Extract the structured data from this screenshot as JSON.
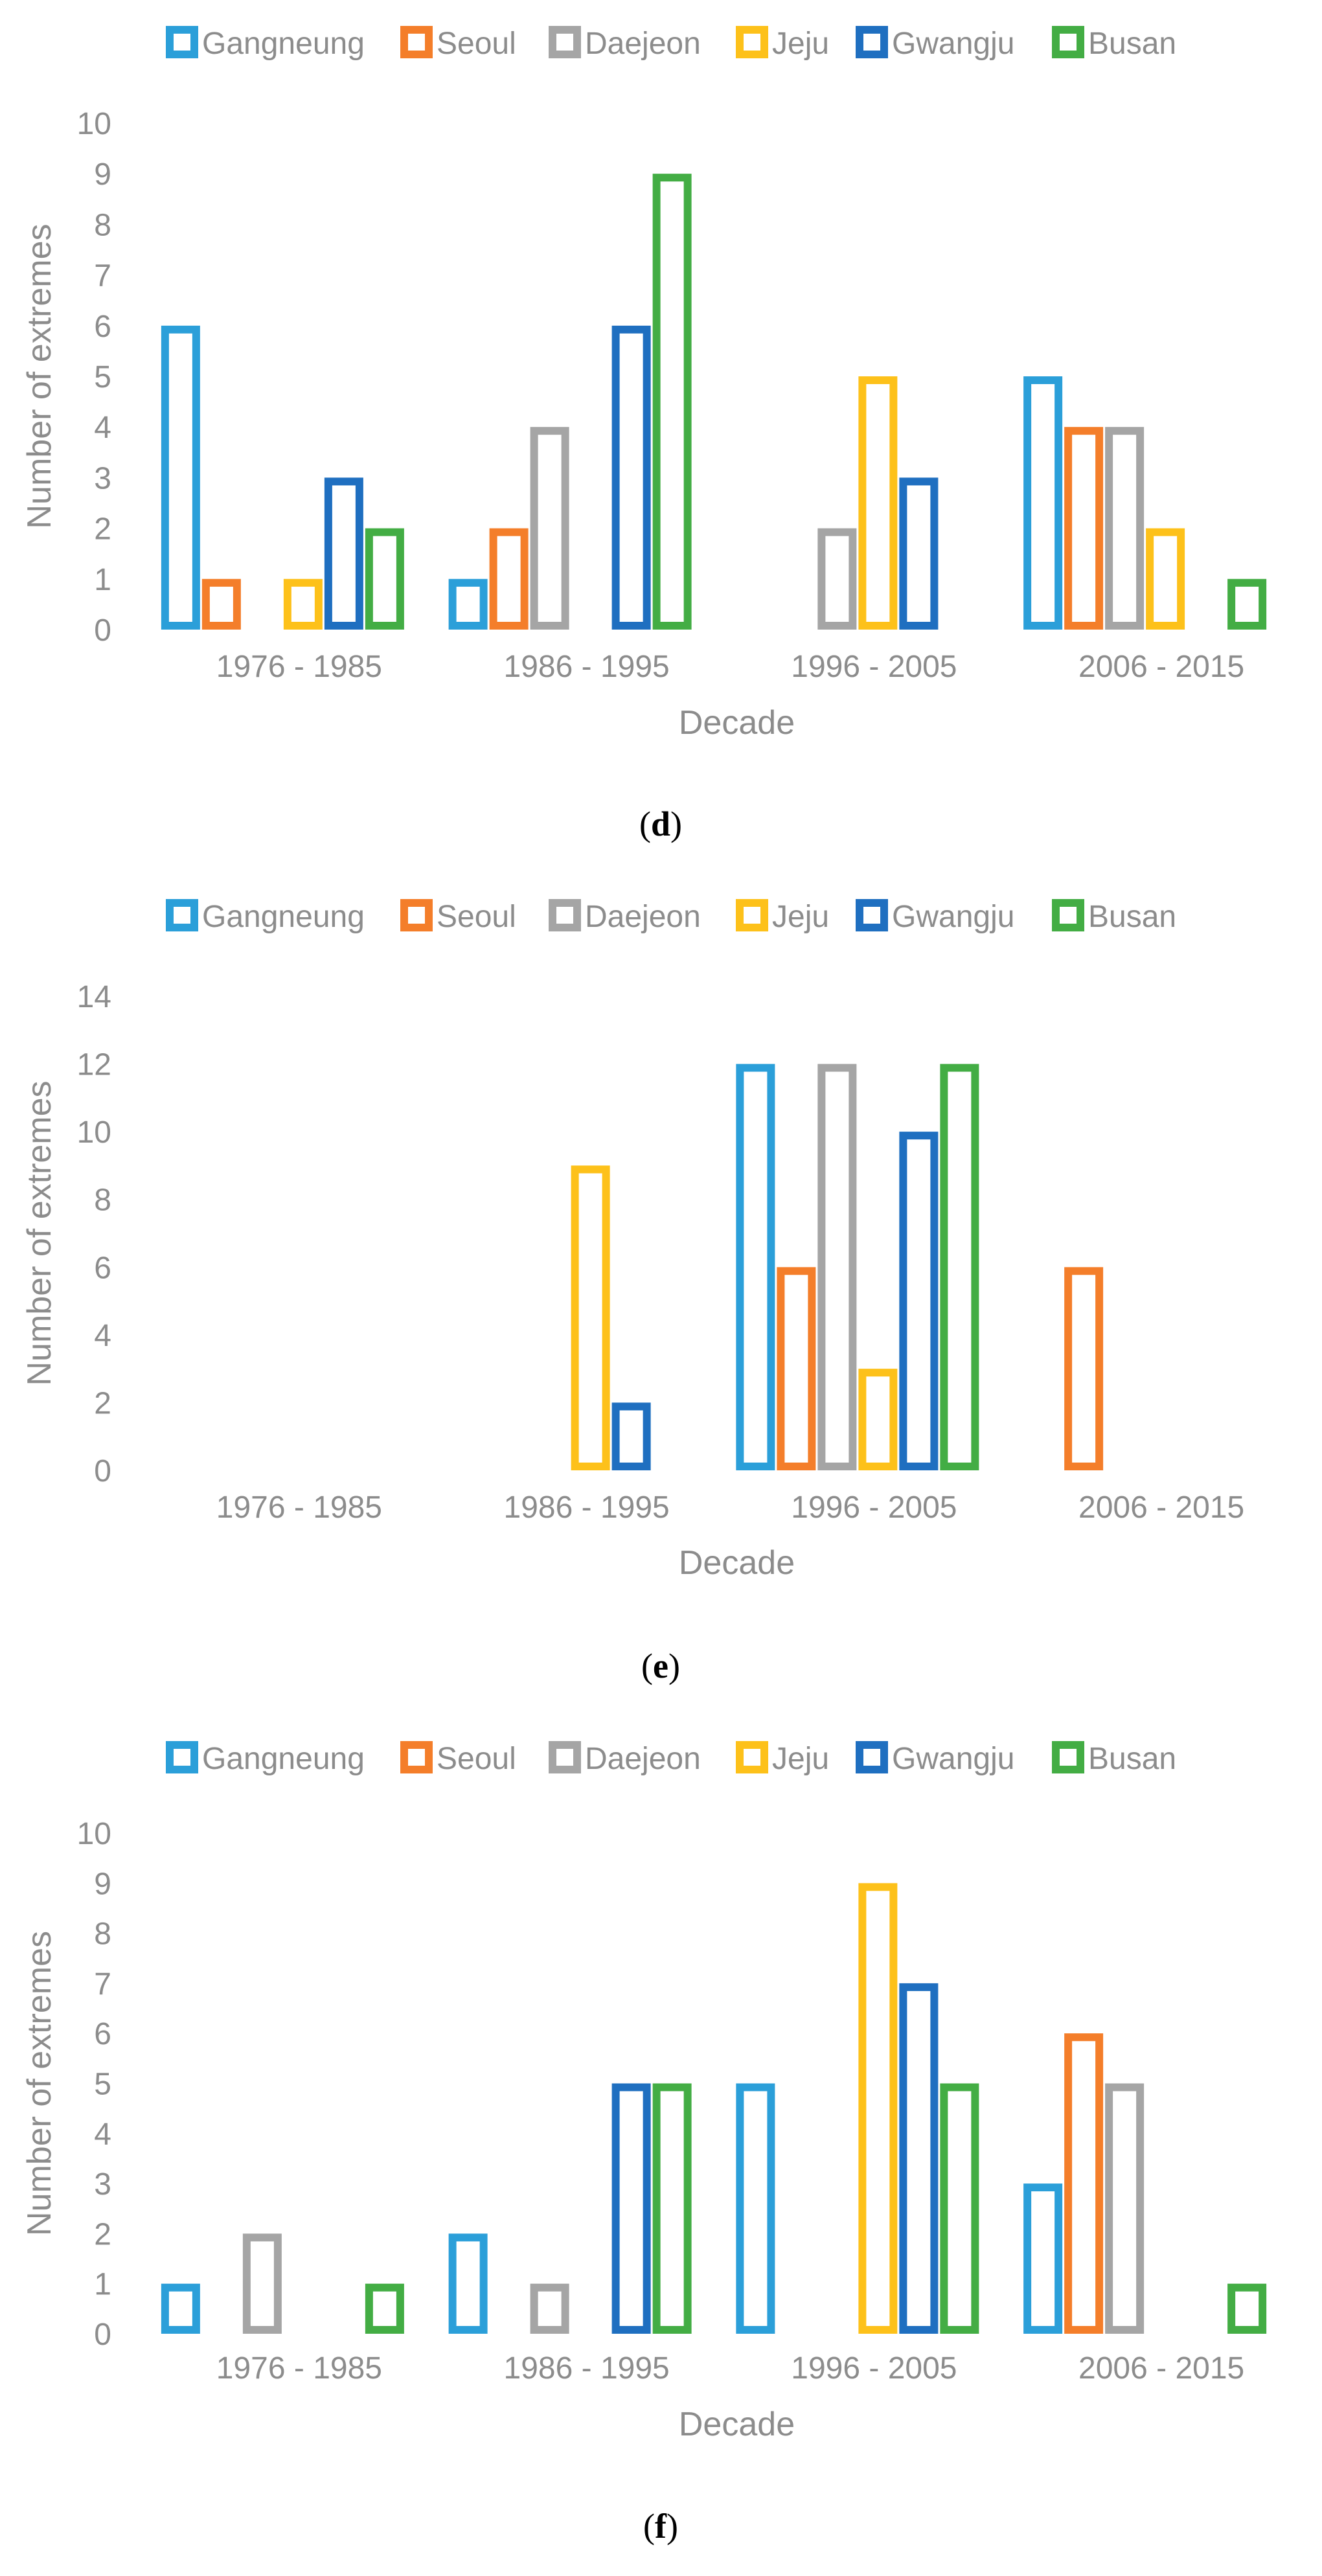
{
  "colors": {
    "text": "#8c8c8c",
    "caption": "#000000",
    "Gangneung": "#2b9fd9",
    "Seoul": "#f47e2a",
    "Daejeon": "#a5a5a5",
    "Jeju": "#fdc11a",
    "Gwangju": "#1f6fc0",
    "Busan": "#43ad44"
  },
  "chart_data": [
    {
      "type": "bar",
      "panel": "d",
      "caption_open": "(",
      "caption_letter": "d",
      "caption_close": ")",
      "xlabel": "Decade",
      "ylabel": "Number of extremes",
      "ylim": [
        0,
        10
      ],
      "yticks": [
        0,
        1,
        2,
        3,
        4,
        5,
        6,
        7,
        8,
        9,
        10
      ],
      "legend_position": "top",
      "categories": [
        "1976 - 1985",
        "1986 - 1995",
        "1996 - 2005",
        "2006 - 2015"
      ],
      "series": [
        {
          "name": "Gangneung",
          "values": [
            6,
            1,
            0,
            5
          ]
        },
        {
          "name": "Seoul",
          "values": [
            1,
            2,
            0,
            4
          ]
        },
        {
          "name": "Daejeon",
          "values": [
            0,
            4,
            2,
            4
          ]
        },
        {
          "name": "Jeju",
          "values": [
            1,
            0,
            5,
            2
          ]
        },
        {
          "name": "Gwangju",
          "values": [
            3,
            6,
            3,
            0
          ]
        },
        {
          "name": "Busan",
          "values": [
            2,
            9,
            0,
            1
          ]
        }
      ]
    },
    {
      "type": "bar",
      "panel": "e",
      "caption_open": "(",
      "caption_letter": "e",
      "caption_close": ")",
      "xlabel": "Decade",
      "ylabel": "Number of extremes",
      "ylim": [
        0,
        14
      ],
      "yticks": [
        0,
        2,
        4,
        6,
        8,
        10,
        12,
        14
      ],
      "legend_position": "top",
      "categories": [
        "1976 - 1985",
        "1986 - 1995",
        "1996 - 2005",
        "2006 - 2015"
      ],
      "series": [
        {
          "name": "Gangneung",
          "values": [
            0,
            0,
            12,
            0
          ]
        },
        {
          "name": "Seoul",
          "values": [
            0,
            0,
            6,
            6
          ]
        },
        {
          "name": "Daejeon",
          "values": [
            0,
            0,
            12,
            0
          ]
        },
        {
          "name": "Jeju",
          "values": [
            0,
            9,
            3,
            0
          ]
        },
        {
          "name": "Gwangju",
          "values": [
            0,
            2,
            10,
            0
          ]
        },
        {
          "name": "Busan",
          "values": [
            0,
            0,
            12,
            0
          ]
        }
      ]
    },
    {
      "type": "bar",
      "panel": "f",
      "caption_open": "(",
      "caption_letter": "f",
      "caption_close": ")",
      "xlabel": "Decade",
      "ylabel": "Number of extremes",
      "ylim": [
        0,
        10
      ],
      "yticks": [
        0,
        1,
        2,
        3,
        4,
        5,
        6,
        7,
        8,
        9,
        10
      ],
      "legend_position": "top",
      "categories": [
        "1976 - 1985",
        "1986 - 1995",
        "1996 - 2005",
        "2006 - 2015"
      ],
      "series": [
        {
          "name": "Gangneung",
          "values": [
            1,
            2,
            5,
            3
          ]
        },
        {
          "name": "Seoul",
          "values": [
            0,
            0,
            0,
            6
          ]
        },
        {
          "name": "Daejeon",
          "values": [
            2,
            1,
            0,
            5
          ]
        },
        {
          "name": "Jeju",
          "values": [
            0,
            0,
            9,
            0
          ]
        },
        {
          "name": "Gwangju",
          "values": [
            0,
            5,
            7,
            0
          ]
        },
        {
          "name": "Busan",
          "values": [
            1,
            5,
            5,
            1
          ]
        }
      ]
    }
  ]
}
